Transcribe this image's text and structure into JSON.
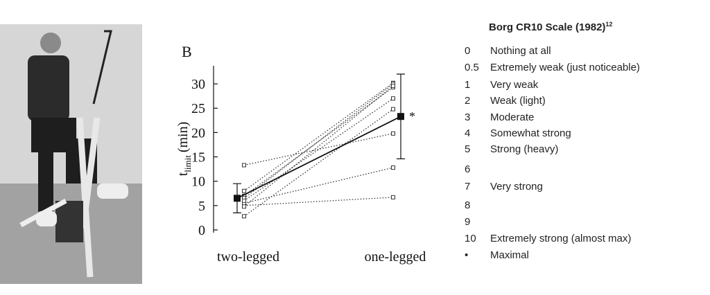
{
  "chart_data": {
    "type": "paired-line",
    "panel_label": "B",
    "ylabel": "t",
    "ylabel_sub": "limit",
    "ylabel_unit": "(min)",
    "categories": [
      "two-legged",
      "one-legged"
    ],
    "ylim": [
      0,
      33
    ],
    "yticks": [
      0,
      5,
      10,
      15,
      20,
      25,
      30
    ],
    "subjects": [
      {
        "values": [
          13.3,
          19.8
        ]
      },
      {
        "values": [
          5.0,
          6.7
        ]
      },
      {
        "values": [
          5.5,
          12.8
        ]
      },
      {
        "values": [
          2.8,
          24.8
        ]
      },
      {
        "values": [
          8.0,
          30.2
        ]
      },
      {
        "values": [
          7.0,
          29.3
        ]
      },
      {
        "values": [
          6.5,
          30.0
        ]
      },
      {
        "values": [
          6.0,
          27.0
        ]
      },
      {
        "values": [
          4.8,
          29.6
        ]
      }
    ],
    "mean": {
      "values": [
        6.5,
        23.3
      ],
      "errors": [
        3.0,
        8.7
      ]
    },
    "annotation": "*"
  },
  "borg_scale": {
    "title": "Borg CR10 Scale (1982)",
    "title_sup": "12",
    "rows": [
      [
        "0",
        "Nothing at all"
      ],
      [
        "0.5",
        "Extremely weak (just noticeable)"
      ],
      [
        "1",
        "Very weak"
      ],
      [
        "2",
        "Weak (light)"
      ],
      [
        "3",
        "Moderate"
      ],
      [
        "4",
        "Somewhat strong"
      ],
      [
        "5",
        "Strong (heavy)"
      ],
      [
        "6",
        ""
      ],
      [
        "7",
        "Very strong"
      ],
      [
        "8",
        ""
      ],
      [
        "9",
        ""
      ],
      [
        "10",
        "Extremely strong (almost max)"
      ],
      [
        "•",
        "Maximal"
      ]
    ]
  }
}
